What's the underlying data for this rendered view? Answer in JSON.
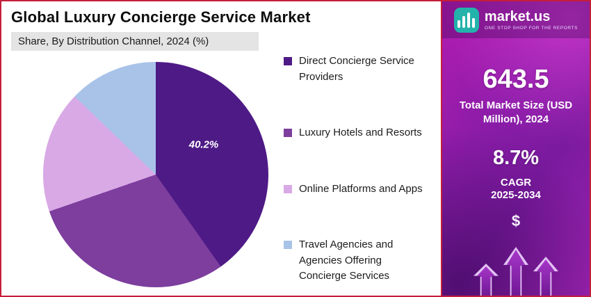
{
  "header": {
    "title": "Global Luxury Concierge Service Market",
    "subtitle": "Share, By Distribution Channel, 2024 (%)"
  },
  "chart_data": {
    "type": "pie",
    "title": "Global Luxury Concierge Service Market",
    "subtitle": "Share, By Distribution Channel, 2024 (%)",
    "unit": "%",
    "start_angle_deg": 0,
    "direction": "clockwise",
    "legend_position": "right",
    "slices": [
      {
        "label": "Direct Concierge Service Providers",
        "value": 40.2,
        "color": "#4e1a86",
        "data_label": "40.2%"
      },
      {
        "label": "Luxury Hotels and Resorts",
        "value": 29.5,
        "color": "#7d3e9e",
        "data_label": ""
      },
      {
        "label": "Online Platforms and Apps",
        "value": 17.5,
        "color": "#d9a9e6",
        "data_label": ""
      },
      {
        "label": "Travel Agencies and Agencies Offering Concierge Services",
        "value": 12.8,
        "color": "#a9c3e8",
        "data_label": ""
      }
    ],
    "annotations": [
      {
        "text": "40.2%",
        "slice_index": 0
      }
    ]
  },
  "sidebar": {
    "brand": {
      "name": "market.us",
      "tagline": "ONE STOP SHOP FOR THE REPORTS",
      "logo_color": "#23b3ab"
    },
    "market_size_value": "643.5",
    "market_size_label": "Total Market Size (USD Million), 2024",
    "cagr_value": "8.7%",
    "cagr_label": "CAGR",
    "cagr_period": "2025-2034",
    "dollar_symbol": "$",
    "colors": {
      "background_magenta": "#b21bb0",
      "background_purple": "#7a1a9e",
      "border_red": "#c41e3a"
    }
  }
}
